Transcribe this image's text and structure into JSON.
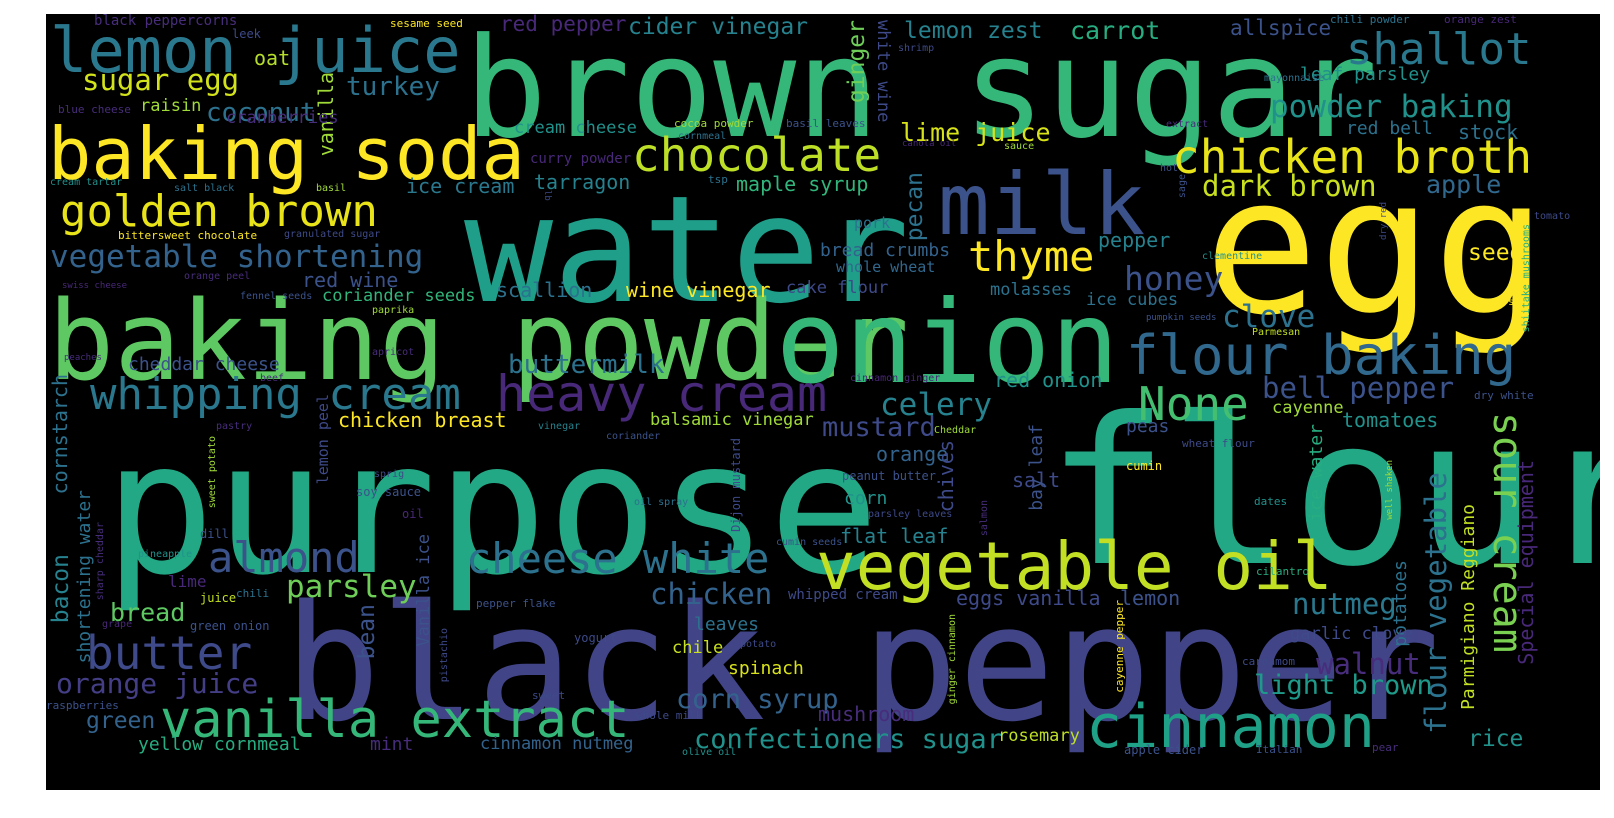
{
  "words": [
    {
      "text": "purpose",
      "color": "#22a884"
    },
    {
      "text": "flour",
      "color": "#22a884"
    },
    {
      "text": "black pepper",
      "color": "#414487"
    },
    {
      "text": "water",
      "color": "#1f9e89"
    },
    {
      "text": "brown sugar",
      "color": "#35b779"
    },
    {
      "text": "egg",
      "color": "#fde725"
    },
    {
      "text": "baking powder",
      "color": "#5ec962"
    },
    {
      "text": "onion",
      "color": "#35b779"
    },
    {
      "text": "milk",
      "color": "#3b528b"
    },
    {
      "text": "baking soda",
      "color": "#fde725"
    },
    {
      "text": "lemon juice",
      "color": "#2a788e"
    },
    {
      "text": "vegetable oil",
      "color": "#c2df23"
    },
    {
      "text": "cinnamon",
      "color": "#1fa187"
    },
    {
      "text": "vanilla extract",
      "color": "#35b779"
    },
    {
      "text": "flour baking",
      "color": "#31688e"
    },
    {
      "text": "heavy cream",
      "color": "#482878"
    },
    {
      "text": "chicken broth",
      "color": "#e8e419"
    },
    {
      "text": "golden brown",
      "color": "#e8e419"
    },
    {
      "text": "chocolate",
      "color": "#bddf26"
    },
    {
      "text": "whipping cream",
      "color": "#2a788e"
    },
    {
      "text": "cheese white",
      "color": "#2c728e"
    },
    {
      "text": "almond",
      "color": "#3b528b"
    },
    {
      "text": "butter",
      "color": "#3e4a89"
    },
    {
      "text": "None",
      "color": "#44bf70"
    },
    {
      "text": "sour cream",
      "color": "#7ad151"
    },
    {
      "text": "shallot",
      "color": "#2a788e"
    },
    {
      "text": "thyme",
      "color": "#fde725"
    },
    {
      "text": "vegetable shortening",
      "color": "#33638d"
    },
    {
      "text": "sugar egg",
      "color": "#d2e21b"
    },
    {
      "text": "powder baking",
      "color": "#21918c"
    },
    {
      "text": "dark brown",
      "color": "#c8e020"
    },
    {
      "text": "honey",
      "color": "#3b528b"
    },
    {
      "text": "celery",
      "color": "#26828e"
    },
    {
      "text": "bell pepper",
      "color": "#3b528b"
    },
    {
      "text": "parsley",
      "color": "#6ece58"
    },
    {
      "text": "orange juice",
      "color": "#433e85"
    },
    {
      "text": "nutmeg",
      "color": "#2a788e"
    },
    {
      "text": "light brown",
      "color": "#1f9a8a"
    },
    {
      "text": "chicken",
      "color": "#33638d"
    },
    {
      "text": "buttermilk",
      "color": "#2c728e"
    },
    {
      "text": "mustard",
      "color": "#3e4a89"
    },
    {
      "text": "walnut",
      "color": "#472d7b"
    },
    {
      "text": "clove",
      "color": "#2c728e"
    },
    {
      "text": "coconut",
      "color": "#2c728e"
    },
    {
      "text": "turkey",
      "color": "#2c728e"
    },
    {
      "text": "flour vegetable",
      "color": "#2c728e"
    },
    {
      "text": "corn syrup",
      "color": "#33638d"
    },
    {
      "text": "confectioners sugar",
      "color": "#21918c"
    },
    {
      "text": "lime juice",
      "color": "#d8e219"
    },
    {
      "text": "lemon zest",
      "color": "#26828e"
    },
    {
      "text": "carrot",
      "color": "#27ad81"
    },
    {
      "text": "cider vinegar",
      "color": "#26828e"
    },
    {
      "text": "red pepper",
      "color": "#482878"
    },
    {
      "text": "allspice",
      "color": "#3b528b"
    },
    {
      "text": "leaf parsley",
      "color": "#21918c"
    },
    {
      "text": "red bell",
      "color": "#2c728e"
    },
    {
      "text": "stock",
      "color": "#2c728e"
    },
    {
      "text": "apple",
      "color": "#31688e"
    },
    {
      "text": "seed",
      "color": "#fde725"
    },
    {
      "text": "oat",
      "color": "#b5de2b"
    },
    {
      "text": "raisin",
      "color": "#a0da39"
    },
    {
      "text": "vanilla",
      "color": "#a0da39"
    },
    {
      "text": "ginger",
      "color": "#6ece58"
    },
    {
      "text": "white wine",
      "color": "#3e4a89"
    },
    {
      "text": "cranberries",
      "color": "#472d7b"
    },
    {
      "text": "cream cheese",
      "color": "#21918c"
    },
    {
      "text": "ice cream",
      "color": "#2a788e"
    },
    {
      "text": "tarragon",
      "color": "#26828e"
    },
    {
      "text": "maple syrup",
      "color": "#31b57b"
    },
    {
      "text": "pecan",
      "color": "#2c728e"
    },
    {
      "text": "red wine",
      "color": "#3b528b"
    },
    {
      "text": "coriander seeds",
      "color": "#31b57b"
    },
    {
      "text": "scallion",
      "color": "#2c728e"
    },
    {
      "text": "wine vinegar",
      "color": "#fde725"
    },
    {
      "text": "cake flour",
      "color": "#3e4a89"
    },
    {
      "text": "molasses",
      "color": "#2c728e"
    },
    {
      "text": "ice cubes",
      "color": "#2c728e"
    },
    {
      "text": "bread crumbs",
      "color": "#33638d"
    },
    {
      "text": "whole wheat",
      "color": "#31688e"
    },
    {
      "text": "pepper",
      "color": "#26828e"
    },
    {
      "text": "cheddar cheese",
      "color": "#3b528b"
    },
    {
      "text": "red onion",
      "color": "#21918c"
    },
    {
      "text": "tomatoes",
      "color": "#21918c"
    },
    {
      "text": "cayenne",
      "color": "#a0da39"
    },
    {
      "text": "peas",
      "color": "#3b528b"
    },
    {
      "text": "orange",
      "color": "#33638d"
    },
    {
      "text": "chives",
      "color": "#3e4a89"
    },
    {
      "text": "salt",
      "color": "#3e4a89"
    },
    {
      "text": "bay leaf",
      "color": "#3b528b"
    },
    {
      "text": "ice water",
      "color": "#27ad81"
    },
    {
      "text": "chicken breast",
      "color": "#fde725"
    },
    {
      "text": "balsamic vinegar",
      "color": "#a0da39"
    },
    {
      "text": "corn",
      "color": "#21918c"
    },
    {
      "text": "flat leaf",
      "color": "#26828e"
    },
    {
      "text": "eggs vanilla",
      "color": "#3e4a89"
    },
    {
      "text": "lemon",
      "color": "#3b528b"
    },
    {
      "text": "bread",
      "color": "#5ec962"
    },
    {
      "text": "green",
      "color": "#33638d"
    },
    {
      "text": "yellow cornmeal",
      "color": "#27ad81"
    },
    {
      "text": "mint",
      "color": "#472d7b"
    },
    {
      "text": "cinnamon nutmeg",
      "color": "#33638d"
    },
    {
      "text": "mushroom",
      "color": "#472d7b"
    },
    {
      "text": "rosemary",
      "color": "#bddf26"
    },
    {
      "text": "rice",
      "color": "#21918c"
    },
    {
      "text": "leaves",
      "color": "#2c728e"
    },
    {
      "text": "chile",
      "color": "#c8e020"
    },
    {
      "text": "spinach",
      "color": "#d8e219"
    },
    {
      "text": "whipped cream",
      "color": "#3e4a89"
    },
    {
      "text": "bean",
      "color": "#3b528b"
    },
    {
      "text": "bacon",
      "color": "#26828e"
    },
    {
      "text": "cornstarch",
      "color": "#2c728e"
    },
    {
      "text": "shortening water",
      "color": "#2c728e"
    },
    {
      "text": "Parmigiano Reggiano",
      "color": "#c2df23"
    },
    {
      "text": "Special equipment",
      "color": "#482878"
    },
    {
      "text": "potatoes",
      "color": "#2c728e"
    },
    {
      "text": "garlic clove",
      "color": "#3e4a89"
    },
    {
      "text": "pork",
      "color": "#2c728e"
    },
    {
      "text": "curry powder",
      "color": "#482878"
    },
    {
      "text": "lemon peel",
      "color": "#3e4a89"
    },
    {
      "text": "Vanilla ice",
      "color": "#3b528b"
    },
    {
      "text": "black peppercorns",
      "color": "#472d7b"
    },
    {
      "text": "leek",
      "color": "#3e4a89"
    },
    {
      "text": "sesame seed",
      "color": "#fde725"
    },
    {
      "text": "chili powder",
      "color": "#2c728e"
    },
    {
      "text": "orange zest",
      "color": "#482878"
    },
    {
      "text": "shrimp",
      "color": "#3e4a89"
    },
    {
      "text": "mayonnaise",
      "color": "#2c728e"
    },
    {
      "text": "blue cheese",
      "color": "#472d7b"
    },
    {
      "text": "cocoa powder",
      "color": "#a0da39"
    },
    {
      "text": "basil leaves",
      "color": "#3b528b"
    },
    {
      "text": "cornmeal",
      "color": "#2c728e"
    },
    {
      "text": "extract",
      "color": "#472d7b"
    },
    {
      "text": "canola oil",
      "color": "#482878"
    },
    {
      "text": "sauce",
      "color": "#a0da39"
    },
    {
      "text": "cream tartar",
      "color": "#21918c"
    },
    {
      "text": "salt black",
      "color": "#2c728e"
    },
    {
      "text": "basil",
      "color": "#a0da39"
    },
    {
      "text": "tsp",
      "color": "#2c728e"
    },
    {
      "text": "hot",
      "color": "#3b528b"
    },
    {
      "text": "sage",
      "color": "#3b528b"
    },
    {
      "text": "bittersweet chocolate",
      "color": "#fde725"
    },
    {
      "text": "granulated sugar",
      "color": "#3e4a89"
    },
    {
      "text": "tomato",
      "color": "#3e4a89"
    },
    {
      "text": "shiitake mushrooms",
      "color": "#27ad81"
    },
    {
      "text": "dry red",
      "color": "#3e4a89"
    },
    {
      "text": "orange peel",
      "color": "#472d7b"
    },
    {
      "text": "swiss cheese",
      "color": "#482878"
    },
    {
      "text": "fennel seeds",
      "color": "#3b528b"
    },
    {
      "text": "paprika",
      "color": "#a0da39"
    },
    {
      "text": "clementine",
      "color": "#21918c"
    },
    {
      "text": "pumpkin seeds",
      "color": "#3b528b"
    },
    {
      "text": "capers",
      "color": "#fde725"
    },
    {
      "text": "Parmesan",
      "color": "#c2df23"
    },
    {
      "text": "dry white",
      "color": "#3b528b"
    },
    {
      "text": "peaches",
      "color": "#472d7b"
    },
    {
      "text": "apricot",
      "color": "#472d7b"
    },
    {
      "text": "cinnamon ginger",
      "color": "#482878"
    },
    {
      "text": "beef",
      "color": "#472d7b"
    },
    {
      "text": "pastry",
      "color": "#472d7b"
    },
    {
      "text": "vinegar",
      "color": "#26828e"
    },
    {
      "text": "coriander",
      "color": "#3b528b"
    },
    {
      "text": "Cheddar",
      "color": "#a0da39"
    },
    {
      "text": "wheat flour",
      "color": "#3e4a89"
    },
    {
      "text": "sweet potato",
      "color": "#a0da39"
    },
    {
      "text": "sprig",
      "color": "#3e4a89"
    },
    {
      "text": "soy sauce",
      "color": "#3b528b"
    },
    {
      "text": "Dijon mustard",
      "color": "#3e4a89"
    },
    {
      "text": "peanut butter",
      "color": "#3b528b"
    },
    {
      "text": "cumin",
      "color": "#fde725"
    },
    {
      "text": "oil spray",
      "color": "#2c728e"
    },
    {
      "text": "dates",
      "color": "#21918c"
    },
    {
      "text": "well shaken",
      "color": "#a0da39"
    },
    {
      "text": "oil",
      "color": "#482878"
    },
    {
      "text": "dill",
      "color": "#3b528b"
    },
    {
      "text": "salmon",
      "color": "#472d7b"
    },
    {
      "text": "parsley leaves",
      "color": "#3e4a89"
    },
    {
      "text": "cumin seeds",
      "color": "#3b528b"
    },
    {
      "text": "sharp cheddar",
      "color": "#472d7b"
    },
    {
      "text": "pineapple",
      "color": "#21918c"
    },
    {
      "text": "lime",
      "color": "#482878"
    },
    {
      "text": "chili",
      "color": "#2c728e"
    },
    {
      "text": "juice",
      "color": "#c2df23"
    },
    {
      "text": "pepper flake",
      "color": "#3b528b"
    },
    {
      "text": "grape",
      "color": "#482878"
    },
    {
      "text": "green onion",
      "color": "#3b528b"
    },
    {
      "text": "cilantro",
      "color": "#27ad81"
    },
    {
      "text": "yogurt",
      "color": "#3e4a89"
    },
    {
      "text": "potato",
      "color": "#3e4a89"
    },
    {
      "text": "pistachio",
      "color": "#3e4a89"
    },
    {
      "text": "cayenne pepper",
      "color": "#fde725"
    },
    {
      "text": "ginger cinnamon",
      "color": "#a0da39"
    },
    {
      "text": "cardamom",
      "color": "#3e4a89"
    },
    {
      "text": "sweet",
      "color": "#3e4a89"
    },
    {
      "text": "raspberries",
      "color": "#3b528b"
    },
    {
      "text": "whole milk",
      "color": "#3e4a89"
    },
    {
      "text": "olive oil",
      "color": "#21918c"
    },
    {
      "text": "apple cider",
      "color": "#3b528b"
    },
    {
      "text": "Italian",
      "color": "#3b528b"
    },
    {
      "text": "pear",
      "color": "#472d7b"
    },
    {
      "text": "lb",
      "color": "#3e4a89"
    }
  ]
}
